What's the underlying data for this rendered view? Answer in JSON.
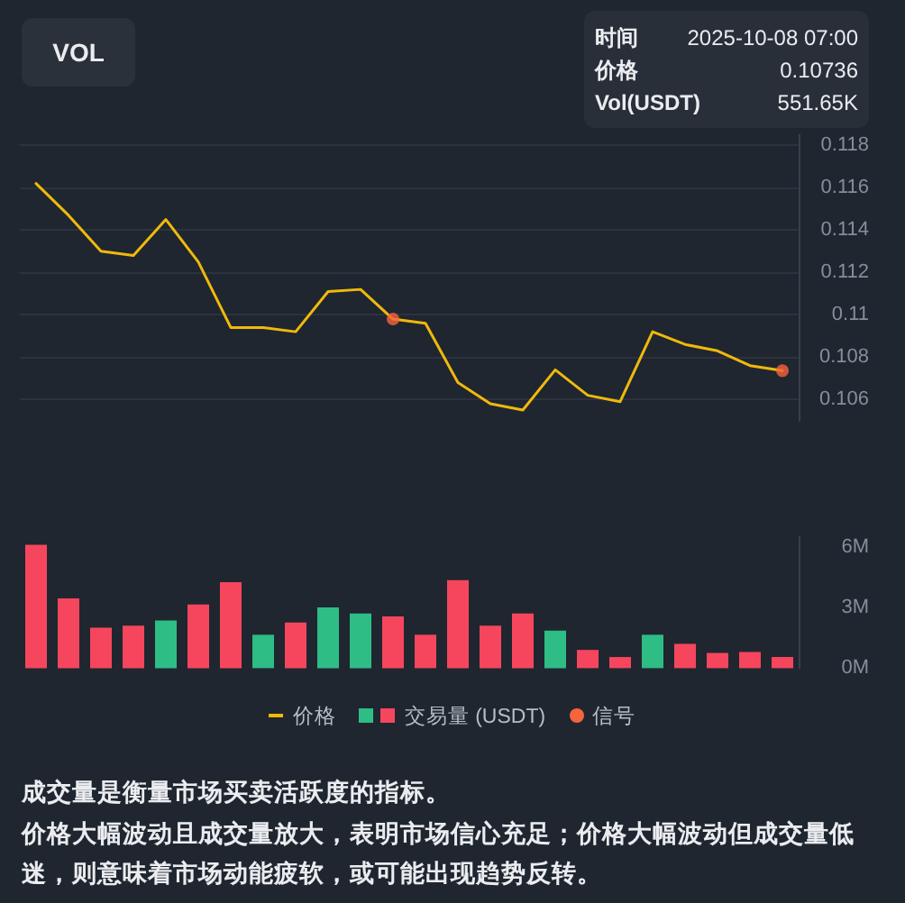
{
  "chart_data": [
    {
      "type": "line",
      "title": "VOL",
      "categories": [
        null,
        null,
        null,
        null,
        null,
        null,
        null,
        null,
        null,
        null,
        null,
        null,
        null,
        null,
        null,
        null,
        null,
        null,
        null,
        null,
        null,
        null,
        null,
        null
      ],
      "series": [
        {
          "name": "价格",
          "color": "#f0b90b",
          "marker": "none",
          "values": [
            0.1162,
            0.1147,
            0.113,
            0.1128,
            0.1145,
            0.1125,
            0.1094,
            0.1094,
            0.1092,
            0.1111,
            0.1112,
            0.1098,
            0.1096,
            0.1068,
            0.1058,
            0.1055,
            0.1074,
            0.1062,
            0.1059,
            0.1092,
            0.1086,
            0.1083,
            0.1076,
            0.10736
          ]
        },
        {
          "name": "信号",
          "type": "scatter",
          "color": "#f6643c",
          "marker": "circle",
          "values": [
            null,
            null,
            null,
            null,
            null,
            null,
            null,
            null,
            null,
            null,
            null,
            0.1098,
            null,
            null,
            null,
            null,
            null,
            null,
            null,
            null,
            null,
            null,
            null,
            0.10736
          ]
        }
      ],
      "ylim": [
        0.105,
        0.1185
      ],
      "yticks": [
        0.106,
        0.108,
        0.11,
        0.112,
        0.114,
        0.116,
        0.118
      ],
      "tick_labels": "y",
      "grid": "y",
      "legend": "bottom",
      "annotations": [
        "时间 2025-10-08 07:00\n价格 0.10736\nVol(USDT) 551.65K"
      ]
    },
    {
      "type": "bar",
      "categories": [
        null,
        null,
        null,
        null,
        null,
        null,
        null,
        null,
        null,
        null,
        null,
        null,
        null,
        null,
        null,
        null,
        null,
        null,
        null,
        null,
        null,
        null,
        null,
        null
      ],
      "series": [
        {
          "name": "交易量 (USDT)",
          "colors": [
            "#f6465d",
            "#f6465d",
            "#f6465d",
            "#f6465d",
            "#2ebd85",
            "#f6465d",
            "#f6465d",
            "#2ebd85",
            "#f6465d",
            "#2ebd85",
            "#2ebd85",
            "#f6465d",
            "#f6465d",
            "#f6465d",
            "#f6465d",
            "#f6465d",
            "#2ebd85",
            "#f6465d",
            "#f6465d",
            "#2ebd85",
            "#f6465d",
            "#f6465d",
            "#f6465d",
            "#f6465d"
          ],
          "values": [
            6.1,
            3.45,
            2.0,
            2.1,
            2.35,
            3.15,
            4.25,
            1.65,
            2.25,
            3.0,
            2.7,
            2.55,
            1.65,
            4.35,
            2.1,
            2.7,
            1.85,
            0.9,
            0.55,
            1.65,
            1.2,
            0.75,
            0.8,
            0.55165
          ]
        }
      ],
      "ylim": [
        0,
        6.5
      ],
      "yticks": [
        {
          "value": 0,
          "label": "0M"
        },
        {
          "value": 3,
          "label": "3M"
        },
        {
          "value": 6,
          "label": "6M"
        }
      ],
      "tick_labels": "y",
      "legend": "bottom",
      "annotations": [
        "成交量是衡量市场买卖活跃度的指标。",
        "价格大幅波动且成交量放大，表明市场信心充足；价格大幅波动但成交量低迷，则意味着市场动能疲软，或可能出现趋势反转。"
      ]
    }
  ]
}
